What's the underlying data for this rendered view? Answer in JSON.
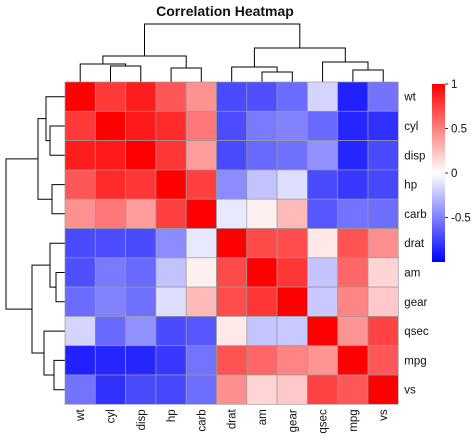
{
  "chart_data": {
    "type": "heatmap",
    "title": "Correlation Heatmap",
    "rows": [
      "wt",
      "cyl",
      "disp",
      "hp",
      "carb",
      "drat",
      "am",
      "gear",
      "qsec",
      "mpg",
      "vs"
    ],
    "columns": [
      "wt",
      "cyl",
      "disp",
      "hp",
      "carb",
      "drat",
      "am",
      "gear",
      "qsec",
      "mpg",
      "vs"
    ],
    "values": [
      [
        1.0,
        0.78,
        0.89,
        0.66,
        0.43,
        -0.71,
        -0.69,
        -0.58,
        -0.17,
        -0.87,
        -0.55
      ],
      [
        0.78,
        1.0,
        0.9,
        0.83,
        0.53,
        -0.7,
        -0.52,
        -0.49,
        -0.59,
        -0.85,
        -0.81
      ],
      [
        0.89,
        0.9,
        1.0,
        0.79,
        0.39,
        -0.71,
        -0.59,
        -0.56,
        -0.43,
        -0.85,
        -0.71
      ],
      [
        0.66,
        0.83,
        0.79,
        1.0,
        0.75,
        -0.45,
        -0.24,
        -0.13,
        -0.71,
        -0.78,
        -0.72
      ],
      [
        0.43,
        0.53,
        0.39,
        0.75,
        1.0,
        -0.09,
        0.06,
        0.27,
        -0.66,
        -0.55,
        -0.57
      ],
      [
        -0.71,
        -0.7,
        -0.71,
        -0.45,
        -0.09,
        1.0,
        0.71,
        0.7,
        0.09,
        0.68,
        0.44
      ],
      [
        -0.69,
        -0.52,
        -0.59,
        -0.24,
        0.06,
        0.71,
        1.0,
        0.79,
        -0.23,
        0.6,
        0.17
      ],
      [
        -0.58,
        -0.49,
        -0.56,
        -0.13,
        0.27,
        0.7,
        0.79,
        1.0,
        -0.21,
        0.48,
        0.21
      ],
      [
        -0.17,
        -0.59,
        -0.43,
        -0.71,
        -0.66,
        0.09,
        -0.23,
        -0.21,
        1.0,
        0.42,
        0.74
      ],
      [
        -0.87,
        -0.85,
        -0.85,
        -0.78,
        -0.55,
        0.68,
        0.6,
        0.48,
        0.42,
        1.0,
        0.66
      ],
      [
        -0.55,
        -0.81,
        -0.71,
        -0.72,
        -0.57,
        0.44,
        0.17,
        0.21,
        0.74,
        0.66,
        1.0
      ]
    ],
    "color_scale": {
      "low": "#0000ff",
      "mid": "#ffffff",
      "high": "#ff0000",
      "min": -1,
      "max": 1
    },
    "legend_ticks": [
      1,
      0.5,
      0,
      -0.5
    ],
    "legend_tick_labels": [
      "1",
      "0.5",
      "0",
      "-0.5"
    ],
    "row_dendrogram": true,
    "column_dendrogram": true,
    "legend_placement": "right"
  }
}
